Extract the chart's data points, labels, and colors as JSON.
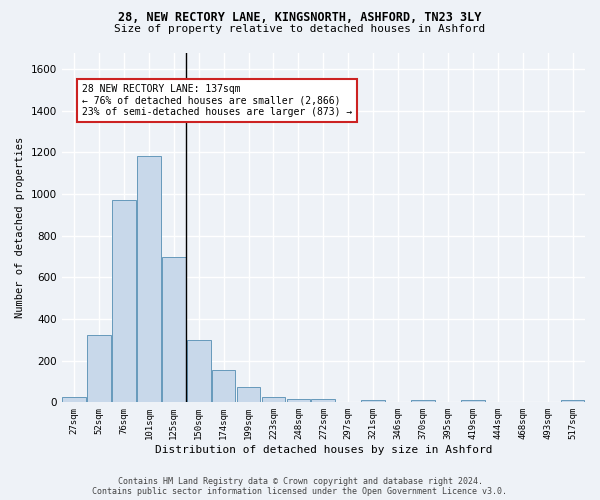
{
  "title1": "28, NEW RECTORY LANE, KINGSNORTH, ASHFORD, TN23 3LY",
  "title2": "Size of property relative to detached houses in Ashford",
  "xlabel": "Distribution of detached houses by size in Ashford",
  "ylabel": "Number of detached properties",
  "bar_color": "#c8d8ea",
  "bar_edge_color": "#6699bb",
  "categories": [
    "27sqm",
    "52sqm",
    "76sqm",
    "101sqm",
    "125sqm",
    "150sqm",
    "174sqm",
    "199sqm",
    "223sqm",
    "248sqm",
    "272sqm",
    "297sqm",
    "321sqm",
    "346sqm",
    "370sqm",
    "395sqm",
    "419sqm",
    "444sqm",
    "468sqm",
    "493sqm",
    "517sqm"
  ],
  "values": [
    25,
    325,
    970,
    1185,
    700,
    300,
    155,
    75,
    25,
    15,
    15,
    0,
    10,
    0,
    10,
    0,
    10,
    0,
    0,
    0,
    10
  ],
  "ylim": [
    0,
    1680
  ],
  "yticks": [
    0,
    200,
    400,
    600,
    800,
    1000,
    1200,
    1400,
    1600
  ],
  "property_line_x": 4.5,
  "annotation_line1": "28 NEW RECTORY LANE: 137sqm",
  "annotation_line2": "← 76% of detached houses are smaller (2,866)",
  "annotation_line3": "23% of semi-detached houses are larger (873) →",
  "footer": "Contains HM Land Registry data © Crown copyright and database right 2024.\nContains public sector information licensed under the Open Government Licence v3.0.",
  "bg_color": "#eef2f7",
  "plot_bg_color": "#eef2f7",
  "grid_color": "#ffffff",
  "annotation_box_color": "#ffffff",
  "annotation_box_edge": "#cc2222",
  "title1_fontsize": 8.5,
  "title2_fontsize": 8.0
}
